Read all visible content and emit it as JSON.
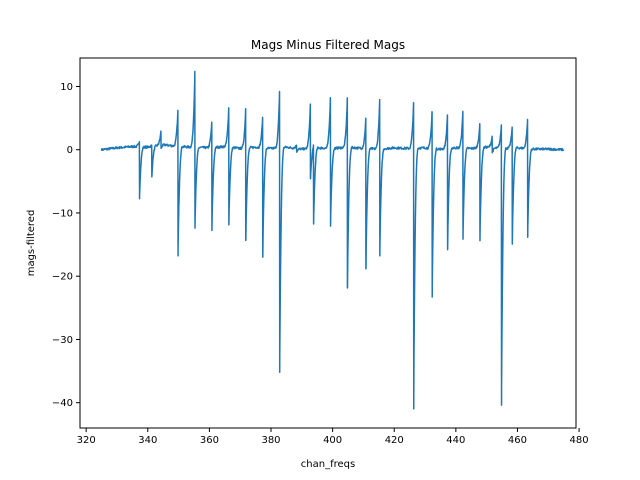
{
  "chart_data": {
    "type": "line",
    "title": "Mags Minus Filtered Mags",
    "xlabel": "chan_freqs",
    "ylabel": "mags-filtered",
    "xlim": [
      318,
      479
    ],
    "ylim": [
      -44,
      14.5
    ],
    "xticks": [
      320,
      340,
      360,
      380,
      400,
      420,
      440,
      460,
      480
    ],
    "yticks": [
      10,
      0,
      -10,
      -20,
      -30,
      -40
    ],
    "ytick_labels": [
      "10",
      "0",
      "−10",
      "−20",
      "−30",
      "−40"
    ],
    "grid": false,
    "legend": "none",
    "series": [
      {
        "color": "#1f77b4",
        "baseline": [
          [
            325,
            0.0
          ],
          [
            330,
            0.3
          ],
          [
            335,
            0.5
          ],
          [
            340,
            0.4
          ],
          [
            345,
            0.8
          ],
          [
            350,
            0.5
          ],
          [
            355,
            0.4
          ],
          [
            360,
            0.3
          ],
          [
            365,
            0.5
          ],
          [
            370,
            0.2
          ],
          [
            375,
            0.4
          ],
          [
            380,
            0.2
          ],
          [
            385,
            0.4
          ],
          [
            390,
            0.1
          ],
          [
            395,
            0.3
          ],
          [
            400,
            0.2
          ],
          [
            405,
            0.4
          ],
          [
            410,
            0.2
          ],
          [
            415,
            0.1
          ],
          [
            420,
            0.3
          ],
          [
            425,
            0.2
          ],
          [
            430,
            0.3
          ],
          [
            435,
            0.1
          ],
          [
            440,
            0.3
          ],
          [
            445,
            0.2
          ],
          [
            450,
            0.4
          ],
          [
            455,
            0.2
          ],
          [
            460,
            0.3
          ],
          [
            465,
            0.1
          ],
          [
            470,
            0.1
          ],
          [
            475,
            0.0
          ]
        ],
        "resonances": [
          {
            "f": 337.3,
            "up": 0.8,
            "down": -8.2
          },
          {
            "f": 341.3,
            "up": 0.2,
            "down": -4.8
          },
          {
            "f": 344.3,
            "up": 2.2,
            "down": -0.5
          },
          {
            "f": 349.8,
            "up": 5.7,
            "down": -17.3
          },
          {
            "f": 355.3,
            "up": 12.0,
            "down": -12.8
          },
          {
            "f": 360.8,
            "up": 4.0,
            "down": -13.1
          },
          {
            "f": 366.3,
            "up": 6.2,
            "down": -12.3
          },
          {
            "f": 371.8,
            "up": 6.2,
            "down": -14.6
          },
          {
            "f": 377.3,
            "up": 4.8,
            "down": -17.3
          },
          {
            "f": 382.8,
            "up": 8.9,
            "down": -35.5
          },
          {
            "f": 388.3,
            "up": 0.5,
            "down": -0.5
          },
          {
            "f": 392.8,
            "up": 7.0,
            "down": -4.8
          },
          {
            "f": 393.8,
            "up": 0.5,
            "down": -12.0
          },
          {
            "f": 399.3,
            "up": 8.0,
            "down": -12.3
          },
          {
            "f": 404.8,
            "up": 7.8,
            "down": -22.2
          },
          {
            "f": 410.8,
            "up": 4.8,
            "down": -19.0
          },
          {
            "f": 415.3,
            "up": 7.8,
            "down": -16.9
          },
          {
            "f": 426.3,
            "up": 7.2,
            "down": -41.2
          },
          {
            "f": 432.3,
            "up": 5.8,
            "down": -23.5
          },
          {
            "f": 437.3,
            "up": 5.3,
            "down": -16.0
          },
          {
            "f": 442.3,
            "up": 5.8,
            "down": -14.4
          },
          {
            "f": 447.8,
            "up": 3.8,
            "down": -14.7
          },
          {
            "f": 451.8,
            "up": 1.8,
            "down": -0.8
          },
          {
            "f": 454.8,
            "up": 3.7,
            "down": -40.6
          },
          {
            "f": 458.3,
            "up": 3.3,
            "down": -15.2
          },
          {
            "f": 463.3,
            "up": 4.6,
            "down": -14.0
          }
        ]
      }
    ]
  }
}
